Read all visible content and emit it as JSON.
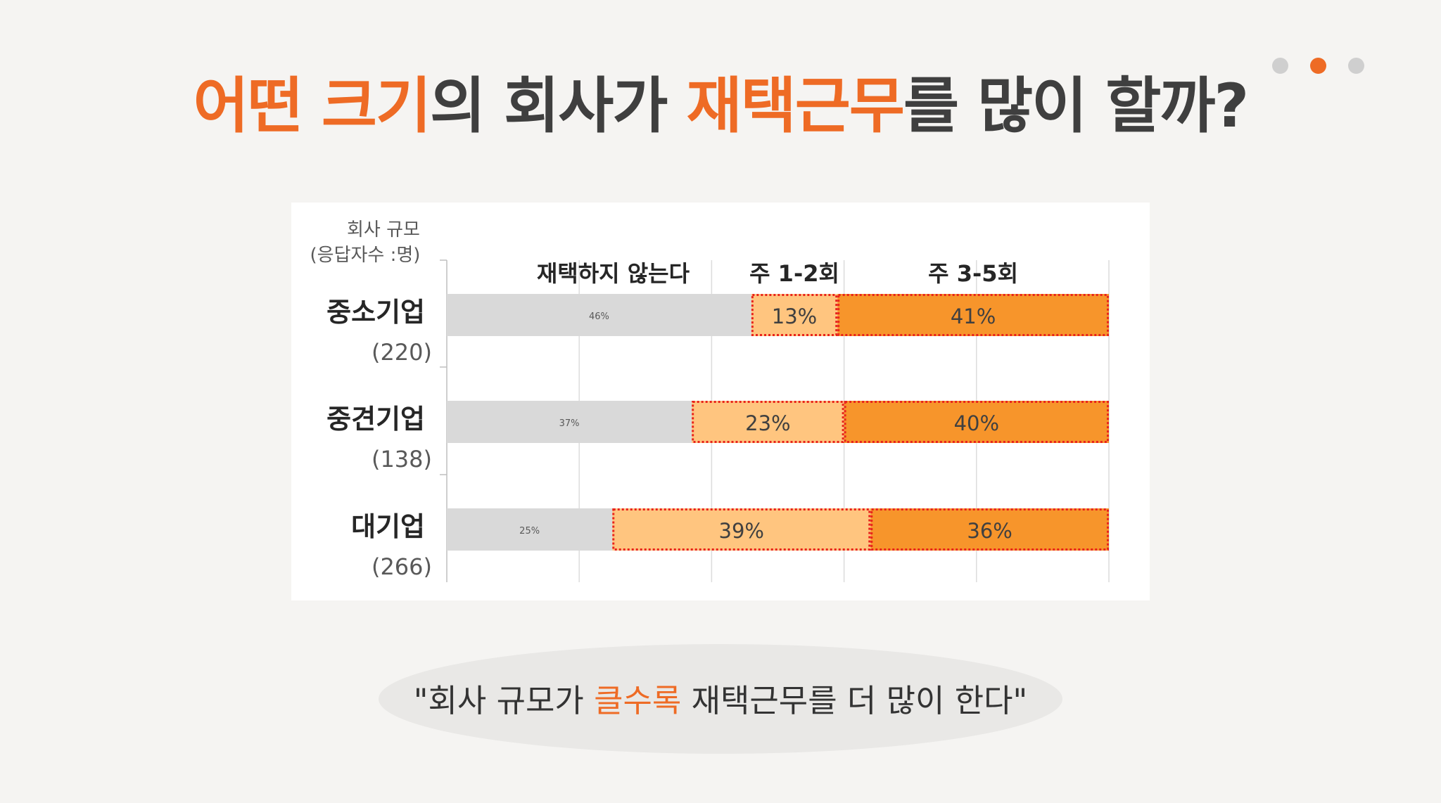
{
  "title": {
    "part1": "어떤 크기",
    "part2": "의 회사가 ",
    "part3": "재택근무",
    "part4": "를 많이 할까?"
  },
  "pager": {
    "count": 3,
    "active_index": 1
  },
  "colors": {
    "accent": "#ee6b25",
    "not_remote": "#d9d9d9",
    "weekly_1_2": "#ffc57f",
    "weekly_3_5": "#f7952b",
    "dotted_border": "#e8231c"
  },
  "chart_data": {
    "type": "bar",
    "stacked": true,
    "orientation": "horizontal",
    "normalized": true,
    "axis_label": [
      "회사 규모",
      "(응답자수 :명)"
    ],
    "categories": [
      "중소기업",
      "중견기업",
      "대기업"
    ],
    "counts": [
      "(220)",
      "(138)",
      "(266)"
    ],
    "series": [
      {
        "name": "재택하지 않는다",
        "values": [
          46,
          37,
          25
        ],
        "labels": [
          "46%",
          "37%",
          "25%"
        ]
      },
      {
        "name": "주 1-2회",
        "values": [
          13,
          23,
          39
        ],
        "labels": [
          "13%",
          "23%",
          "39%"
        ]
      },
      {
        "name": "주 3-5회",
        "values": [
          41,
          40,
          36
        ],
        "labels": [
          "41%",
          "40%",
          "36%"
        ]
      }
    ],
    "xlim": [
      0,
      100
    ],
    "grid": true
  },
  "caption": {
    "pre": "\"회사 규모가 ",
    "highlight": "클수록",
    "post": " 재택근무를 더 많이 한다\""
  }
}
